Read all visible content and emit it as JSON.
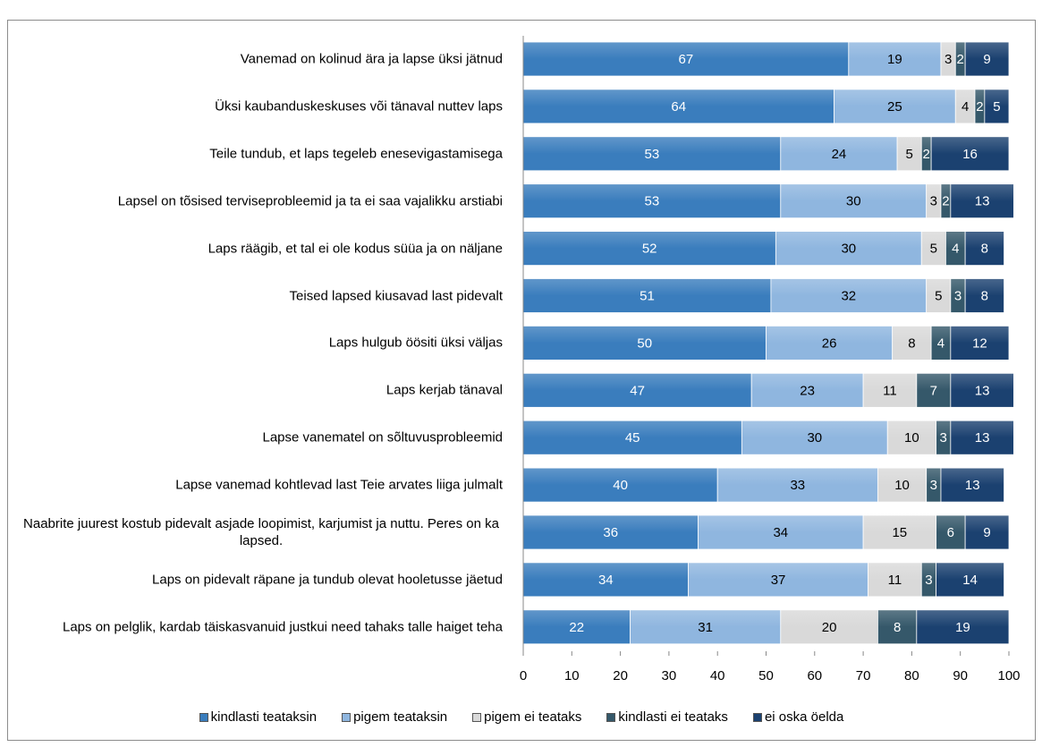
{
  "chart_data": {
    "type": "stacked_barh",
    "categories": [
      "Vanemad on kolinud ära ja lapse üksi jätnud",
      "Üksi kaubanduskeskuses või tänaval nuttev laps",
      "Teile tundub, et laps tegeleb enesevigastamisega",
      "Lapsel on tõsised terviseprobleemid ja ta ei saa vajalikku arstiabi",
      "Laps räägib, et tal ei ole kodus süüa ja on näljane",
      "Teised lapsed kiusavad last pidevalt",
      "Laps hulgub öösiti üksi väljas",
      "Laps kerjab tänaval",
      "Lapse vanematel on sõltuvusprobleemid",
      "Lapse vanemad kohtlevad last Teie arvates liiga julmalt",
      "Naabrite juurest kostub pidevalt asjade loopimist, karjumist ja nuttu. Peres on ka lapsed.",
      "Laps on pidevalt räpane ja tundub olevat hooletusse jäetud",
      "Laps on pelglik, kardab täiskasvanuid justkui need tahaks talle haiget teha"
    ],
    "series": [
      {
        "name": "kindlasti teataksin",
        "color": "#3a7dbd",
        "values": [
          67,
          64,
          53,
          53,
          52,
          51,
          50,
          47,
          45,
          40,
          36,
          34,
          22
        ]
      },
      {
        "name": "pigem teataksin",
        "color": "#8fb6df",
        "values": [
          19,
          25,
          24,
          30,
          30,
          32,
          26,
          23,
          30,
          33,
          34,
          37,
          31
        ]
      },
      {
        "name": "pigem ei teataks",
        "color": "#d9d9d9",
        "values": [
          3,
          4,
          5,
          3,
          5,
          5,
          8,
          11,
          10,
          10,
          15,
          11,
          20
        ]
      },
      {
        "name": "kindlasti ei teataks",
        "color": "#35586a",
        "values": [
          2,
          2,
          2,
          2,
          4,
          3,
          4,
          7,
          3,
          3,
          6,
          3,
          8
        ]
      },
      {
        "name": "ei oska öelda",
        "color": "#1b4170",
        "values": [
          9,
          5,
          16,
          13,
          8,
          8,
          12,
          13,
          13,
          13,
          9,
          14,
          19
        ]
      }
    ],
    "xlim": [
      0,
      100
    ],
    "xticks": [
      0,
      10,
      20,
      30,
      40,
      50,
      60,
      70,
      80,
      90,
      100
    ],
    "legend": "bottom"
  }
}
